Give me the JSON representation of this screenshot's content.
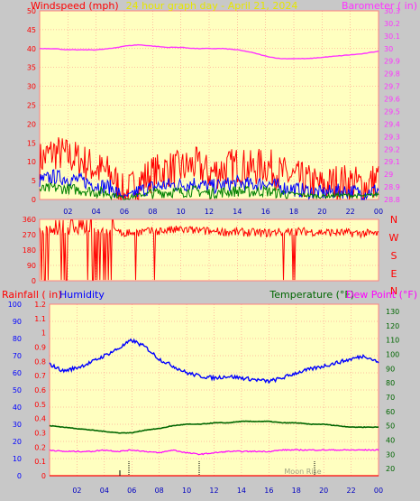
{
  "header": {
    "left": "Windspeed (mph)",
    "center": "24 hour graph day - April 21, 2024",
    "right": "Barometer ( in)"
  },
  "footer": {
    "moon_label": "Moon Rise"
  },
  "colors": {
    "bg_outer": "#c8c8c8",
    "plot_bg": "#ffffc0",
    "frame": "#ff8080",
    "wind": "#ff0000",
    "gust": "#ff0000",
    "wind_avg": "#0000ff",
    "wind_low": "#008000",
    "barometer": "#ff33ff",
    "direction": "#ff0000",
    "humidity": "#0000ff",
    "temperature": "#006600",
    "dewpoint": "#ff00ff",
    "rainfall": "#ff0000",
    "title_yellow": "#e6e600"
  },
  "chart_data": [
    {
      "type": "line",
      "title": "24 hour graph day - April 21, 2024",
      "xlabel": "",
      "x_ticks": [
        "02",
        "04",
        "06",
        "08",
        "10",
        "12",
        "14",
        "16",
        "18",
        "20",
        "22",
        "00"
      ],
      "ylabel_left": "Windspeed (mph)",
      "ylim_left": [
        0,
        50
      ],
      "y_ticks_left": [
        "0",
        "5",
        "10",
        "15",
        "20",
        "25",
        "30",
        "35",
        "40",
        "45",
        "50"
      ],
      "ylabel_right": "Barometer ( in)",
      "ylim_right": [
        28.8,
        30.3
      ],
      "y_ticks_right": [
        "28.8",
        "28.9",
        "29",
        "29.1",
        "29.2",
        "29.3",
        "29.4",
        "29.5",
        "29.6",
        "29.7",
        "29.8",
        "29.9",
        "30",
        "30.1",
        "30.2",
        "30.3"
      ],
      "x_hours": [
        0,
        1,
        2,
        3,
        4,
        5,
        6,
        7,
        8,
        9,
        10,
        11,
        12,
        13,
        14,
        15,
        16,
        17,
        18,
        19,
        20,
        21,
        22,
        23,
        24
      ],
      "series": [
        {
          "name": "Windspeed (mph)",
          "axis": "left",
          "values": [
            9,
            11,
            10,
            9,
            7,
            6,
            1,
            4,
            6,
            7,
            7,
            8,
            6,
            7,
            8,
            7,
            8,
            6,
            5,
            4,
            3,
            4,
            4,
            3,
            5
          ]
        },
        {
          "name": "Barometer ( in)",
          "axis": "right",
          "values": [
            30.0,
            30.0,
            29.99,
            29.99,
            29.99,
            30.0,
            30.02,
            30.03,
            30.02,
            30.01,
            30.01,
            30.0,
            30.0,
            30.0,
            29.99,
            29.97,
            29.94,
            29.92,
            29.92,
            29.92,
            29.93,
            29.94,
            29.95,
            29.96,
            29.98
          ]
        }
      ]
    },
    {
      "type": "line",
      "title": "",
      "ylabel_left": "",
      "ylim_left": [
        0,
        360
      ],
      "y_ticks_left": [
        "0",
        "90",
        "180",
        "270",
        "360"
      ],
      "labels_right": [
        "N",
        "W",
        "S",
        "E",
        "N"
      ],
      "x_hours": [
        0,
        2,
        4,
        6,
        8,
        10,
        12,
        14,
        16,
        18,
        20,
        22,
        24
      ],
      "series": [
        {
          "name": "Wind Direction",
          "values": [
            300,
            290,
            300,
            280,
            290,
            300,
            290,
            285,
            280,
            290,
            285,
            280,
            275
          ]
        }
      ]
    },
    {
      "type": "line",
      "title": "",
      "ylabel_left": "Rainfall ( in)",
      "ylim_left": [
        0,
        1.2
      ],
      "y_ticks_rain": [
        "0",
        "0.1",
        "0.2",
        "0.3",
        "0.4",
        "0.5",
        "0.6",
        "0.7",
        "0.8",
        "0.9",
        "1",
        "1.1",
        "1.2"
      ],
      "ylabel_humidity": "Humidity",
      "ylim_humidity": [
        0,
        100
      ],
      "y_ticks_humidity": [
        "0",
        "10",
        "20",
        "30",
        "40",
        "50",
        "60",
        "70",
        "80",
        "90",
        "100"
      ],
      "ylabel_right": "Temperature (°F)",
      "ylabel_right2": "Dew Point (°F)",
      "ylim_right": [
        15,
        135
      ],
      "y_ticks_right": [
        "20",
        "30",
        "40",
        "50",
        "60",
        "70",
        "80",
        "90",
        "100",
        "110",
        "120",
        "130"
      ],
      "x_hours": [
        0,
        1,
        2,
        3,
        4,
        5,
        6,
        7,
        8,
        9,
        10,
        11,
        12,
        13,
        14,
        15,
        16,
        17,
        18,
        19,
        20,
        21,
        22,
        23,
        24
      ],
      "series": [
        {
          "name": "Humidity",
          "values": [
            65,
            61,
            63,
            66,
            70,
            74,
            79,
            75,
            68,
            64,
            60,
            58,
            57,
            58,
            57,
            56,
            55,
            57,
            60,
            62,
            64,
            66,
            68,
            70,
            66
          ]
        },
        {
          "name": "Temperature (°F)",
          "values": [
            50,
            49,
            48,
            47,
            46,
            45,
            45,
            47,
            48,
            50,
            51,
            51,
            52,
            52,
            53,
            53,
            53,
            52,
            52,
            51,
            51,
            50,
            49,
            49,
            49
          ]
        },
        {
          "name": "Dew Point (°F)",
          "values": [
            33,
            32,
            32,
            32,
            33,
            32,
            33,
            32,
            31,
            33,
            31,
            30,
            31,
            32,
            32,
            32,
            32,
            33,
            33,
            33,
            33,
            33,
            33,
            33,
            33
          ]
        },
        {
          "name": "Rainfall ( in)",
          "values": [
            0,
            0,
            0,
            0,
            0,
            0,
            0,
            0,
            0,
            0,
            0,
            0,
            0,
            0,
            0,
            0,
            0,
            0,
            0,
            0,
            0,
            0,
            0,
            0,
            0
          ]
        }
      ]
    }
  ]
}
